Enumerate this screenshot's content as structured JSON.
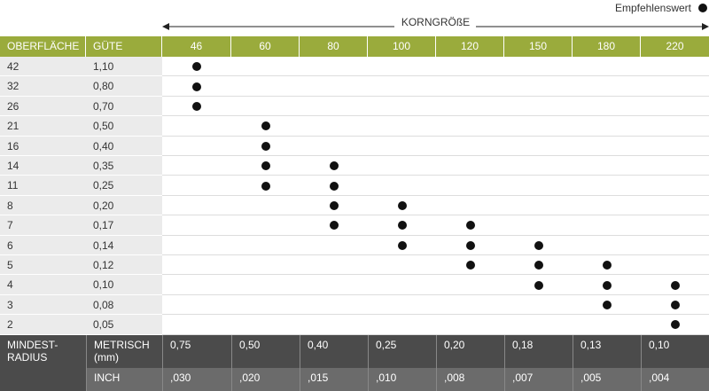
{
  "legend": "Empfehlenswert",
  "axis_label": "KORNGRÖßE",
  "table": {
    "header": [
      "OBERFLÄCHE",
      "GÜTE",
      "46",
      "60",
      "80",
      "100",
      "120",
      "150",
      "180",
      "220"
    ],
    "rows": [
      {
        "surface": "42",
        "quality": "1,10",
        "recommended": [
          true,
          false,
          false,
          false,
          false,
          false,
          false,
          false
        ]
      },
      {
        "surface": "32",
        "quality": "0,80",
        "recommended": [
          true,
          false,
          false,
          false,
          false,
          false,
          false,
          false
        ]
      },
      {
        "surface": "26",
        "quality": "0,70",
        "recommended": [
          true,
          false,
          false,
          false,
          false,
          false,
          false,
          false
        ]
      },
      {
        "surface": "21",
        "quality": "0,50",
        "recommended": [
          false,
          true,
          false,
          false,
          false,
          false,
          false,
          false
        ]
      },
      {
        "surface": "16",
        "quality": "0,40",
        "recommended": [
          false,
          true,
          false,
          false,
          false,
          false,
          false,
          false
        ]
      },
      {
        "surface": "14",
        "quality": "0,35",
        "recommended": [
          false,
          true,
          true,
          false,
          false,
          false,
          false,
          false
        ]
      },
      {
        "surface": "11",
        "quality": "0,25",
        "recommended": [
          false,
          true,
          true,
          false,
          false,
          false,
          false,
          false
        ]
      },
      {
        "surface": "8",
        "quality": "0,20",
        "recommended": [
          false,
          false,
          true,
          true,
          false,
          false,
          false,
          false
        ]
      },
      {
        "surface": "7",
        "quality": "0,17",
        "recommended": [
          false,
          false,
          true,
          true,
          true,
          false,
          false,
          false
        ]
      },
      {
        "surface": "6",
        "quality": "0,14",
        "recommended": [
          false,
          false,
          false,
          true,
          true,
          true,
          false,
          false
        ]
      },
      {
        "surface": "5",
        "quality": "0,12",
        "recommended": [
          false,
          false,
          false,
          false,
          true,
          true,
          true,
          false
        ]
      },
      {
        "surface": "4",
        "quality": "0,10",
        "recommended": [
          false,
          false,
          false,
          false,
          false,
          true,
          true,
          true
        ]
      },
      {
        "surface": "3",
        "quality": "0,08",
        "recommended": [
          false,
          false,
          false,
          false,
          false,
          false,
          true,
          true
        ]
      },
      {
        "surface": "2",
        "quality": "0,05",
        "recommended": [
          false,
          false,
          false,
          false,
          false,
          false,
          false,
          true
        ]
      }
    ],
    "footer": {
      "label": "MINDEST-RADIUS",
      "metric": {
        "label": "METRISCH (mm)",
        "values": [
          "0,75",
          "0,50",
          "0,40",
          "0,25",
          "0,20",
          "0,18",
          "0,13",
          "0,10"
        ]
      },
      "inch": {
        "label": "INCH",
        "values": [
          ",030",
          ",020",
          ",015",
          ",010",
          ",008",
          ",007",
          ",005",
          ",004"
        ]
      }
    }
  }
}
